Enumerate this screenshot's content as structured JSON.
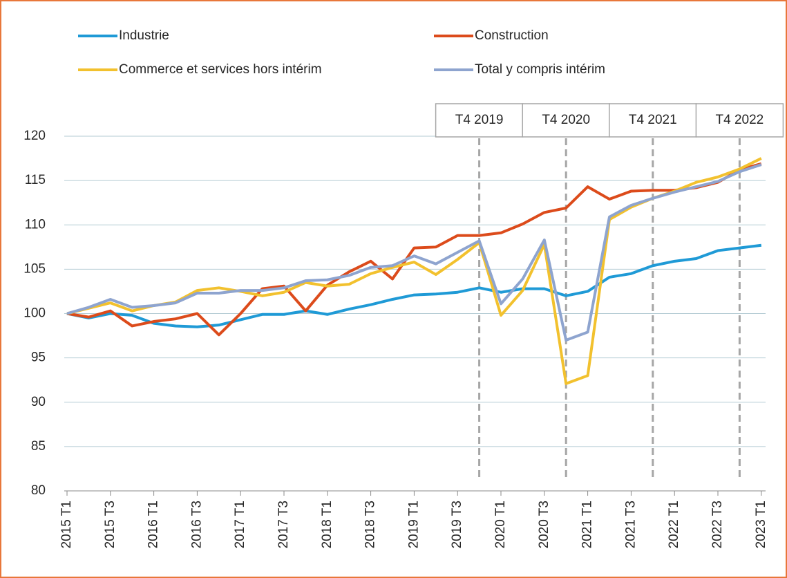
{
  "chart_data": {
    "type": "line",
    "categories": [
      "2015 T1",
      null,
      "2015 T3",
      null,
      "2016 T1",
      null,
      "2016 T3",
      null,
      "2017 T1",
      null,
      "2017 T3",
      null,
      "2018 T1",
      null,
      "2018 T3",
      null,
      "2019 T1",
      null,
      "2019 T3",
      null,
      "2020 T1",
      null,
      "2020 T3",
      null,
      "2021 T1",
      null,
      "2021 T3",
      null,
      "2022 T1",
      null,
      "2022 T3",
      null,
      "2023 T1"
    ],
    "series": [
      {
        "name": "Industrie",
        "color": "#1f9ad6",
        "values": [
          100,
          99.5,
          100,
          99.8,
          98.9,
          98.6,
          98.5,
          98.7,
          99.3,
          99.9,
          99.9,
          100.3,
          99.9,
          100.5,
          101,
          101.6,
          102.1,
          102.2,
          102.4,
          102.9,
          102.4,
          102.8,
          102.8,
          102,
          102.5,
          104.1,
          104.5,
          105.4,
          105.9,
          106.2,
          107.1,
          107.4,
          107.7
        ]
      },
      {
        "name": "Construction",
        "color": "#dc4b1b",
        "values": [
          100,
          99.6,
          100.3,
          98.6,
          99.1,
          99.4,
          100,
          97.6,
          100,
          102.8,
          103.1,
          100.3,
          103.2,
          104.7,
          105.9,
          103.9,
          107.4,
          107.5,
          108.8,
          108.8,
          109.1,
          110.1,
          111.4,
          111.9,
          114.3,
          112.9,
          113.8,
          113.9,
          113.9,
          114.2,
          114.8,
          116.2,
          116.9
        ]
      },
      {
        "name": "Commerce et services hors intérim",
        "color": "#f2c12e",
        "values": [
          100,
          100.6,
          101.2,
          100.3,
          100.9,
          101.3,
          102.6,
          102.9,
          102.5,
          102,
          102.4,
          103.5,
          103.1,
          103.3,
          104.5,
          105.2,
          105.8,
          104.4,
          106.1,
          108,
          99.8,
          102.6,
          107.8,
          92.1,
          93,
          110.6,
          112,
          113,
          113.8,
          114.8,
          115.4,
          116.3,
          117.5
        ]
      },
      {
        "name": "Total y compris intérim",
        "color": "#8ea4cf",
        "values": [
          100,
          100.7,
          101.6,
          100.7,
          100.9,
          101.2,
          102.3,
          102.3,
          102.6,
          102.6,
          102.9,
          103.7,
          103.8,
          104.3,
          105.2,
          105.4,
          106.5,
          105.6,
          106.9,
          108.2,
          101.1,
          103.9,
          108.3,
          97,
          97.9,
          110.9,
          112.2,
          113,
          113.7,
          114.3,
          114.9,
          116,
          116.8
        ]
      }
    ],
    "ylim": [
      80,
      120
    ],
    "yticks": [
      80,
      85,
      90,
      95,
      100,
      105,
      110,
      115,
      120
    ],
    "grid": true,
    "annotations": [
      {
        "text": "T4 2019",
        "index": 19
      },
      {
        "text": "T4 2020",
        "index": 23
      },
      {
        "text": "T4 2021",
        "index": 27
      },
      {
        "text": "T4 2022",
        "index": 31
      }
    ]
  }
}
